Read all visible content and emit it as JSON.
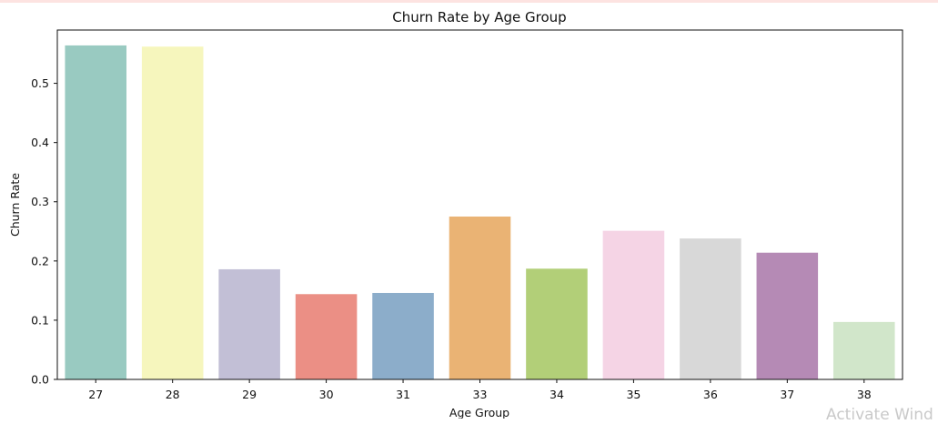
{
  "chart_data": {
    "type": "bar",
    "title": "Churn Rate by Age Group",
    "xlabel": "Age Group",
    "ylabel": "Churn Rate",
    "categories": [
      "27",
      "28",
      "29",
      "30",
      "31",
      "33",
      "34",
      "35",
      "36",
      "37",
      "38"
    ],
    "values": [
      0.564,
      0.562,
      0.186,
      0.144,
      0.146,
      0.275,
      0.187,
      0.251,
      0.238,
      0.214,
      0.097
    ],
    "colors": [
      "#99cac1",
      "#f6f6bd",
      "#c2bfd6",
      "#eb8f85",
      "#8cadca",
      "#eab374",
      "#b2cf78",
      "#f5d4e5",
      "#d8d8d8",
      "#b58ab5",
      "#d1e6ca"
    ],
    "yticks": [
      "0.0",
      "0.1",
      "0.2",
      "0.3",
      "0.4",
      "0.5"
    ],
    "ylim": [
      0,
      0.59
    ],
    "grid": false,
    "legend": "none"
  },
  "watermark": "Activate Wind"
}
